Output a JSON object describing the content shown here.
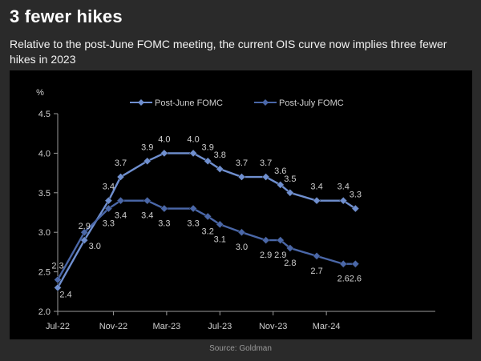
{
  "header": {
    "title": "3 fewer hikes",
    "subtitle": "Relative to the post-June FOMC meeting, the current OIS curve now implies three fewer hikes in 2023"
  },
  "footer": {
    "source": "Source: Goldman"
  },
  "chart_data": {
    "type": "line",
    "ylabel": "%",
    "ylim": [
      2.0,
      4.5
    ],
    "yticks": [
      "2.0",
      "2.5",
      "3.0",
      "3.5",
      "4.0",
      "4.5"
    ],
    "xlim": [
      0,
      15.6
    ],
    "xticks": [
      {
        "x": 0,
        "label": "Jul-22"
      },
      {
        "x": 2.3,
        "label": "Nov-22"
      },
      {
        "x": 4.5,
        "label": "Mar-23"
      },
      {
        "x": 6.7,
        "label": "Jul-23"
      },
      {
        "x": 8.9,
        "label": "Nov-23"
      },
      {
        "x": 11.1,
        "label": "Mar-24"
      }
    ],
    "legend": "top-center",
    "colors": {
      "post_june": "#6f8fcf",
      "post_july": "#4a67a8"
    },
    "series": [
      {
        "name": "Post-June FOMC",
        "x": [
          0,
          1.1,
          2.1,
          2.6,
          3.7,
          4.4,
          5.6,
          6.2,
          6.7,
          7.6,
          8.6,
          9.2,
          9.6,
          10.7,
          11.8,
          12.3
        ],
        "values": [
          2.3,
          2.9,
          3.4,
          3.7,
          3.9,
          4.0,
          4.0,
          3.9,
          3.8,
          3.7,
          3.7,
          3.6,
          3.5,
          3.4,
          3.4,
          3.3
        ],
        "labels": [
          "2.3",
          "2.9",
          "3.4",
          "3.7",
          "3.9",
          "4.0",
          "4.0",
          "3.9",
          "3.8",
          "3.7",
          "3.7",
          "3.6",
          "3.5",
          "3.4",
          "3.4",
          "3.3"
        ]
      },
      {
        "name": "Post-July FOMC",
        "x": [
          0,
          1.1,
          2.1,
          2.6,
          3.7,
          4.4,
          5.6,
          6.2,
          6.7,
          7.6,
          8.6,
          9.2,
          9.6,
          10.7,
          11.8,
          12.3
        ],
        "values": [
          2.4,
          3.0,
          3.3,
          3.4,
          3.4,
          3.3,
          3.3,
          3.2,
          3.1,
          3.0,
          2.9,
          2.9,
          2.8,
          2.7,
          2.6,
          2.6
        ],
        "labels": [
          "2.4",
          "3.0",
          "3.3",
          "3.4",
          "3.4",
          "3.3",
          "3.3",
          "3.2",
          "3.1",
          "3.0",
          "2.9",
          "2.9",
          "2.8",
          "2.7",
          "2.6",
          "2.6"
        ]
      }
    ]
  }
}
